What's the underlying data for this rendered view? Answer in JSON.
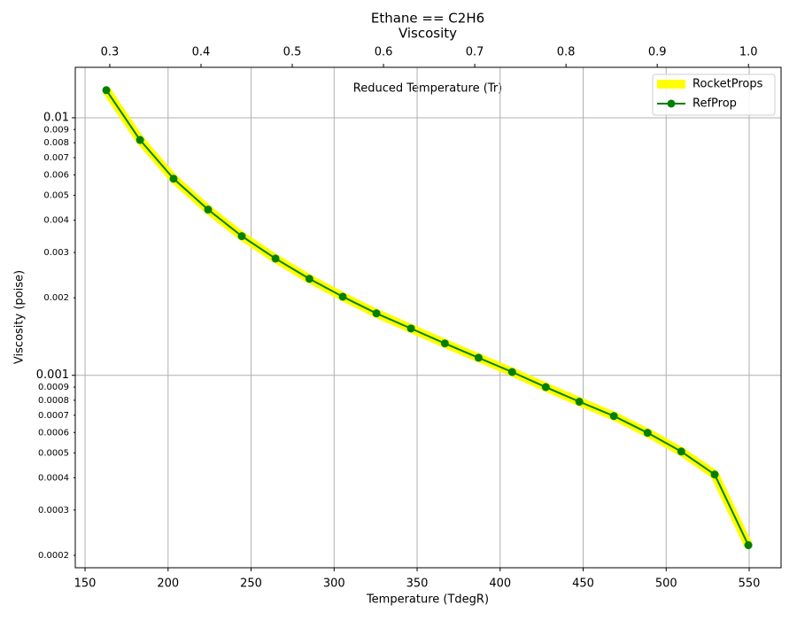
{
  "chart_data": {
    "type": "line",
    "title": "Ethane == C2H6",
    "subtitle": "Viscosity",
    "x_label": "Temperature (TdegR)",
    "y_label": "Viscosity (poise)",
    "x2_label": "Reduced Temperature (Tr)",
    "x": [
      162.8,
      183.1,
      203.3,
      224.1,
      244.4,
      264.7,
      285.1,
      305.2,
      325.5,
      346.3,
      366.7,
      387.0,
      407.2,
      427.5,
      447.7,
      468.5,
      488.8,
      509.1,
      529.2,
      549.5
    ],
    "series": [
      {
        "name": "RocketProps",
        "color": "#ffff00",
        "values": [
          0.0128,
          0.0082,
          0.0058,
          0.0044,
          0.00347,
          0.00284,
          0.00237,
          0.00202,
          0.00174,
          0.00152,
          0.00133,
          0.00117,
          0.00103,
          0.0009,
          0.00079,
          0.000695,
          0.000598,
          0.000506,
          0.000412,
          0.000219
        ]
      },
      {
        "name": "RefProp",
        "color": "#008000",
        "values": [
          0.0128,
          0.0082,
          0.0058,
          0.0044,
          0.00347,
          0.00284,
          0.00237,
          0.00202,
          0.00174,
          0.00152,
          0.00133,
          0.00117,
          0.00103,
          0.0009,
          0.00079,
          0.000695,
          0.000598,
          0.000506,
          0.000412,
          0.000219
        ]
      }
    ],
    "xlim": [
      144.1,
      569.2
    ],
    "xticks": [
      150,
      200,
      250,
      300,
      350,
      400,
      450,
      500,
      550
    ],
    "x2lim": [
      0.2622,
      1.0357
    ],
    "x2ticks": [
      0.3,
      0.4,
      0.5,
      0.6,
      0.7,
      0.8,
      0.9,
      {
        "value": 1,
        "label": "1.0"
      }
    ],
    "ylim": [
      0.000179,
      0.0157
    ],
    "log_y": true,
    "yticks": [
      0.0002,
      0.0003,
      0.0004,
      0.0005,
      0.0006,
      0.0007,
      0.0008,
      0.0009,
      0.001,
      0.002,
      0.003,
      0.004,
      0.005,
      0.006,
      0.007,
      0.008,
      0.009,
      0.01
    ],
    "grid": true,
    "legend": "upper right"
  }
}
